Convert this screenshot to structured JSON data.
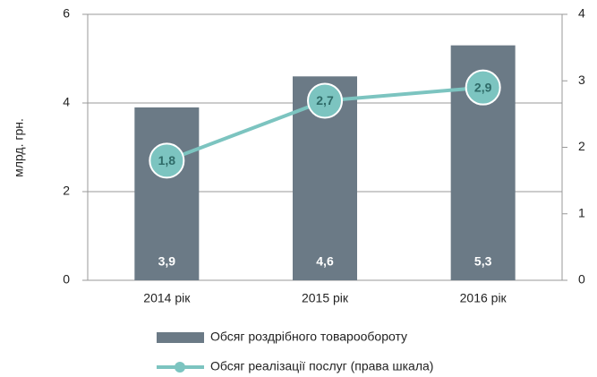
{
  "chart_data": {
    "type": "bar",
    "y_label": "млрд. грн.",
    "categories": [
      "2014 рік",
      "2015 рік",
      "2016 рік"
    ],
    "series": [
      {
        "name": "Обсяг роздрібного товарообороту",
        "color": "#6b7a86",
        "values": [
          3.9,
          4.6,
          5.3
        ],
        "value_labels": [
          "3,9",
          "4,6",
          "5,3"
        ]
      },
      {
        "name": "Обсяг реалізації послуг (права шкала)",
        "color": "#7cc4c0",
        "type": "line",
        "axis": "y2",
        "values": [
          1.8,
          2.7,
          2.9
        ],
        "value_labels": [
          "1,8",
          "2,7",
          "2,9"
        ]
      }
    ],
    "ylim": [
      0,
      6
    ],
    "yticks": [
      0,
      2,
      4,
      6
    ],
    "y2lim": [
      0,
      4
    ],
    "y2ticks": [
      0,
      1,
      2,
      3,
      4
    ],
    "grid": true,
    "legend": "bottom"
  }
}
